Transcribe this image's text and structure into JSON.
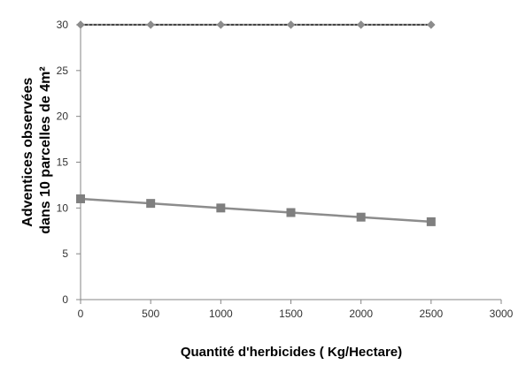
{
  "chart_data": {
    "type": "line",
    "title": "",
    "xlabel": "Quantité d'herbicides ( Kg/Hectare)",
    "ylabel_lines": [
      "Adventices  observées",
      "dans  10 parcelles de 4m²"
    ],
    "x": [
      0,
      500,
      1000,
      1500,
      2000,
      2500
    ],
    "xlim": [
      0,
      3000
    ],
    "ylim": [
      0,
      30
    ],
    "x_ticks": [
      0,
      500,
      1000,
      1500,
      2000,
      2500,
      3000
    ],
    "y_ticks": [
      0,
      5,
      10,
      15,
      20,
      25,
      30
    ],
    "grid": false,
    "legend": "none",
    "series": [
      {
        "values": [
          30,
          30,
          30,
          30,
          30,
          30
        ],
        "marker": "diamond",
        "color": "#8c8c8c",
        "line_style": "dashed",
        "line_color": "#000000"
      },
      {
        "values": [
          11,
          10.5,
          10,
          9.5,
          9,
          8.5
        ],
        "marker": "square",
        "color": "#7f7f7f",
        "line_style": "solid",
        "line_color": "#8c8c8c"
      }
    ]
  }
}
